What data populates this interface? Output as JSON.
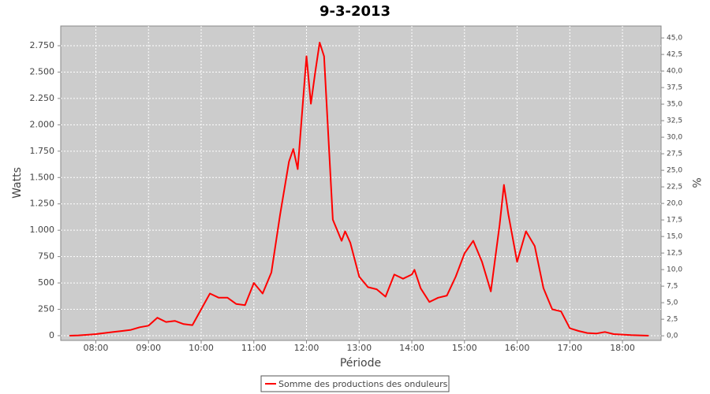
{
  "chart_data": {
    "type": "line",
    "title": "9-3-2013",
    "x_label": "Période",
    "y_label": "Watts",
    "y2_label": "%",
    "x": [
      "07:30",
      "07:40",
      "07:50",
      "08:00",
      "08:10",
      "08:20",
      "08:30",
      "08:40",
      "08:50",
      "09:00",
      "09:10",
      "09:20",
      "09:30",
      "09:40",
      "09:50",
      "10:00",
      "10:10",
      "10:20",
      "10:30",
      "10:40",
      "10:50",
      "11:00",
      "11:10",
      "11:20",
      "11:30",
      "11:40",
      "11:45",
      "11:50",
      "12:00",
      "12:05",
      "12:10",
      "12:15",
      "12:20",
      "12:30",
      "12:40",
      "12:44",
      "12:50",
      "13:00",
      "13:10",
      "13:20",
      "13:30",
      "13:40",
      "13:50",
      "14:00",
      "14:03",
      "14:10",
      "14:20",
      "14:30",
      "14:40",
      "14:50",
      "15:00",
      "15:10",
      "15:20",
      "15:30",
      "15:40",
      "15:45",
      "15:50",
      "16:00",
      "16:10",
      "16:20",
      "16:30",
      "16:40",
      "16:50",
      "17:00",
      "17:10",
      "17:20",
      "17:30",
      "17:40",
      "17:50",
      "18:00",
      "18:10",
      "18:20",
      "18:30"
    ],
    "series": [
      {
        "name": "Somme des productions des onduleurs",
        "color": "#ff0000",
        "values": [
          0,
          3,
          8,
          15,
          25,
          35,
          45,
          55,
          80,
          95,
          170,
          130,
          140,
          110,
          100,
          250,
          400,
          360,
          360,
          300,
          290,
          500,
          400,
          600,
          1150,
          1650,
          1770,
          1580,
          2650,
          2200,
          2500,
          2780,
          2650,
          1100,
          900,
          990,
          880,
          560,
          460,
          440,
          370,
          580,
          540,
          580,
          625,
          450,
          320,
          360,
          380,
          560,
          780,
          900,
          700,
          420,
          1050,
          1430,
          1150,
          700,
          990,
          850,
          450,
          250,
          230,
          70,
          45,
          25,
          20,
          35,
          15,
          10,
          5,
          3,
          0
        ]
      }
    ],
    "xlim": [
      "07:20",
      "18:44"
    ],
    "xticks": [
      "08:00",
      "09:00",
      "10:00",
      "11:00",
      "12:00",
      "13:00",
      "14:00",
      "15:00",
      "16:00",
      "17:00",
      "18:00"
    ],
    "ylim": [
      -45,
      2937
    ],
    "yticks": [
      0,
      250,
      500,
      750,
      {
        "value": 1000,
        "label": "1.000"
      },
      {
        "value": 1250,
        "label": "1.250"
      },
      {
        "value": 1500,
        "label": "1.500"
      },
      {
        "value": 1750,
        "label": "1.750"
      },
      {
        "value": 2000,
        "label": "2.000"
      },
      {
        "value": 2250,
        "label": "2.250"
      },
      {
        "value": 2500,
        "label": "2.500"
      },
      {
        "value": 2750,
        "label": "2.750"
      }
    ],
    "y2lim": [
      -0.7,
      46.8
    ],
    "y2ticks": [
      {
        "value": 0,
        "label": "0,0"
      },
      {
        "value": 2.5,
        "label": "2,5"
      },
      {
        "value": 5,
        "label": "5,0"
      },
      {
        "value": 7.5,
        "label": "7,5"
      },
      {
        "value": 10,
        "label": "10,0"
      },
      {
        "value": 12.5,
        "label": "12,5"
      },
      {
        "value": 15,
        "label": "15,0"
      },
      {
        "value": 17.5,
        "label": "17,5"
      },
      {
        "value": 20,
        "label": "20,0"
      },
      {
        "value": 22.5,
        "label": "22,5"
      },
      {
        "value": 25,
        "label": "25,0"
      },
      {
        "value": 27.5,
        "label": "27,5"
      },
      {
        "value": 30,
        "label": "30,0"
      },
      {
        "value": 32.5,
        "label": "32,5"
      },
      {
        "value": 35,
        "label": "35,0"
      },
      {
        "value": 37.5,
        "label": "37,5"
      },
      {
        "value": 40,
        "label": "40,0"
      },
      {
        "value": 42.5,
        "label": "42,5"
      },
      {
        "value": 45,
        "label": "45,0"
      }
    ],
    "grid": true,
    "legend": "bottom"
  }
}
